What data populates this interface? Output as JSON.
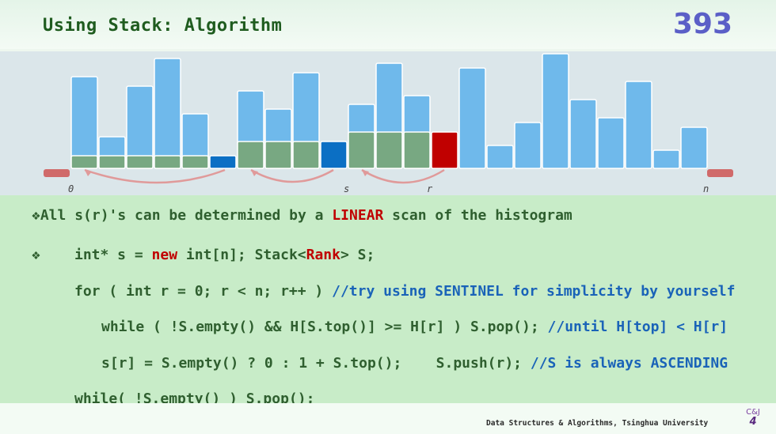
{
  "header": {
    "title": "Using Stack: Algorithm",
    "page_number": "393"
  },
  "histogram": {
    "labels": {
      "zero": "0",
      "s": "s",
      "r": "r",
      "n": "n"
    },
    "colors": {
      "bar_top": "#6fb9eb",
      "bar_base": "#78a882",
      "stack_marker": "#0b6fc4",
      "current": "#c00000",
      "sentinel": "#d06a6a",
      "arc": "#e09a9a"
    },
    "bars": [
      {
        "height": 116,
        "base": 16
      },
      {
        "height": 40,
        "base": 16
      },
      {
        "height": 104,
        "base": 16
      },
      {
        "height": 139,
        "base": 16
      },
      {
        "height": 69,
        "base": 16
      },
      {
        "height": 16,
        "base": 16,
        "marker": true
      },
      {
        "height": 98,
        "base": 34
      },
      {
        "height": 75,
        "base": 34
      },
      {
        "height": 121,
        "base": 34
      },
      {
        "height": 34,
        "base": 34,
        "marker": true
      },
      {
        "height": 81,
        "base": 46
      },
      {
        "height": 133,
        "base": 46
      },
      {
        "height": 92,
        "base": 46
      },
      {
        "height": 46,
        "base": 46,
        "current": true
      },
      {
        "height": 127,
        "base": 0
      },
      {
        "height": 29,
        "base": 0
      },
      {
        "height": 58,
        "base": 0
      },
      {
        "height": 145,
        "base": 0
      },
      {
        "height": 87,
        "base": 0
      },
      {
        "height": 64,
        "base": 0
      },
      {
        "height": 110,
        "base": 0
      },
      {
        "height": 23,
        "base": 0
      },
      {
        "height": 52,
        "base": 0
      }
    ]
  },
  "content": {
    "bullet": "❖",
    "line1_a": "All s(r)'s can be determined by a ",
    "line1_kw": "LINEAR",
    "line1_b": " scan of the histogram",
    "line2_a": "int* s = ",
    "line2_kw1": "new",
    "line2_b": " int[n]; Stack<",
    "line2_kw2": "Rank",
    "line2_c": "> S;",
    "line3_code": "for ( int r = 0; r < n; r++ ) ",
    "line3_comment": "//try using SENTINEL for simplicity by yourself",
    "line4_code": "while ( !S.empty() && H[S.top()] >= H[r] ) S.pop(); ",
    "line4_comment": "//until H[top] < H[r]",
    "line5_code": "s[r] = S.empty() ? 0 : 1 + S.top();    S.push(r); ",
    "line5_comment": "//S is always ASCENDING",
    "line6_code": "while( !S.empty() ) S.pop();"
  },
  "footer": {
    "text": "Data Structures & Algorithms, Tsinghua University",
    "logo_top": "C&J",
    "logo_mark": "4"
  }
}
